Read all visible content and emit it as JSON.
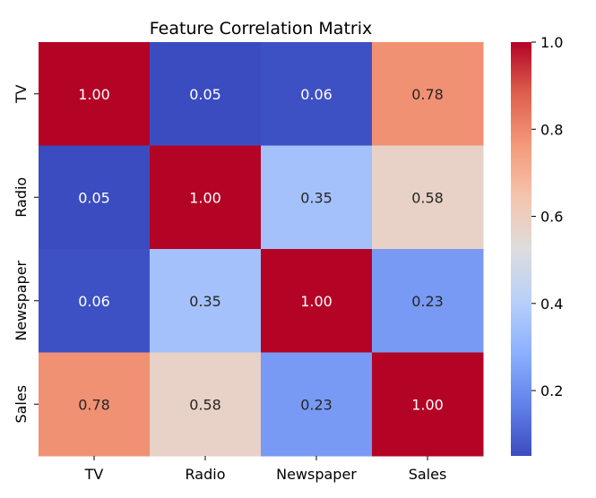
{
  "chart_data": {
    "type": "heatmap",
    "title": "Feature Correlation Matrix",
    "xlabel": "",
    "ylabel": "",
    "categories_x": [
      "TV",
      "Radio",
      "Newspaper",
      "Sales"
    ],
    "categories_y": [
      "TV",
      "Radio",
      "Newspaper",
      "Sales"
    ],
    "values": [
      [
        1.0,
        0.05,
        0.06,
        0.78
      ],
      [
        0.05,
        1.0,
        0.35,
        0.58
      ],
      [
        0.06,
        0.35,
        1.0,
        0.23
      ],
      [
        0.78,
        0.58,
        0.23,
        1.0
      ]
    ],
    "labels": [
      [
        "1.00",
        "0.05",
        "0.06",
        "0.78"
      ],
      [
        "0.05",
        "1.00",
        "0.35",
        "0.58"
      ],
      [
        "0.06",
        "0.35",
        "1.00",
        "0.23"
      ],
      [
        "0.78",
        "0.58",
        "0.23",
        "1.00"
      ]
    ],
    "colormap": "coolwarm",
    "colorbar": {
      "range": [
        0.05,
        1.0
      ],
      "ticks": [
        0.2,
        0.4,
        0.6,
        0.8,
        1.0
      ],
      "tick_labels": [
        "0.2",
        "0.4",
        "0.6",
        "0.8",
        "1.0"
      ]
    }
  }
}
